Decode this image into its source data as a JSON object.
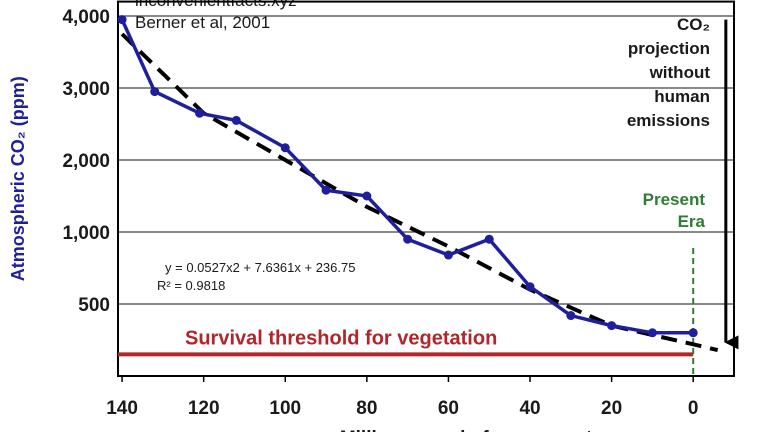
{
  "chart_data": {
    "type": "line",
    "annotations": [
      "inconvenientfacts.xyz",
      "Berner et al, 2001"
    ],
    "y_label": "Atmospheric CO₂ (ppm)",
    "x_label": "Million years before present",
    "x": [
      140,
      132,
      121,
      112,
      100,
      90,
      80,
      70,
      60,
      50,
      40,
      30,
      20,
      10,
      0
    ],
    "values": [
      3950,
      2950,
      2650,
      2550,
      2170,
      1580,
      1500,
      950,
      840,
      950,
      620,
      420,
      350,
      300,
      300
    ],
    "color": "#1f1f9e",
    "trend": {
      "x": [
        140,
        120,
        100,
        80,
        60,
        40,
        20,
        0,
        -6
      ],
      "values": [
        3750,
        2650,
        2000,
        1350,
        900,
        600,
        350,
        220,
        180
      ],
      "color": "#000000",
      "equation": "y = 0.0527x2 + 7.6361x + 236.75",
      "r2": "R² = 0.9818"
    },
    "threshold": {
      "value": 150,
      "label": "Survival threshold for vegetation",
      "color": "#b0262b"
    },
    "present": {
      "x": 0,
      "label": [
        "Present",
        "Era"
      ],
      "color": "#2e7d32"
    },
    "projection": {
      "x": -8,
      "from": 3950,
      "to": 150,
      "label": [
        "CO₂",
        "projection",
        "without",
        "human",
        "emissions"
      ]
    },
    "xlim": [
      141,
      -10
    ],
    "ylim": [
      0,
      4200
    ],
    "xticks": [
      140,
      120,
      100,
      80,
      60,
      40,
      20,
      0
    ],
    "yticks": [
      500,
      {
        "value": 1000,
        "label": "1,000"
      },
      {
        "value": 2000,
        "label": "2,000"
      },
      {
        "value": 3000,
        "label": "3,000"
      },
      {
        "value": 4000,
        "label": "4,000"
      }
    ],
    "grid": true
  }
}
